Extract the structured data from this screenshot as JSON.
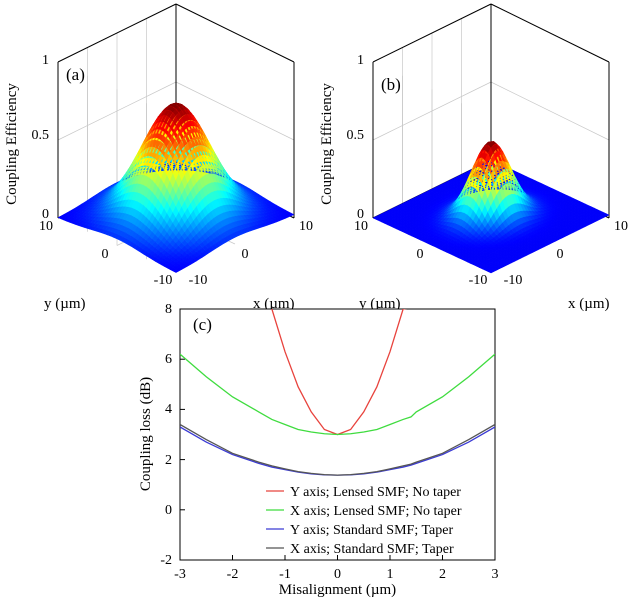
{
  "chart_data": [
    {
      "type": "surface",
      "panel_label": "(a)",
      "zlabel": "Coupling Efficiency",
      "xlabel": "x (µm)",
      "ylabel": "y (µm)",
      "zlim": [
        0,
        1
      ],
      "zticks": [
        "0",
        "0.5",
        "1"
      ],
      "xticks": [
        "-10",
        "0",
        "10"
      ],
      "yticks": [
        "10",
        "0",
        "-10"
      ],
      "peak": 0.72,
      "sigma_um": 4.2,
      "colormap": "jet"
    },
    {
      "type": "surface",
      "panel_label": "(b)",
      "zlabel": "Coupling Efficiency",
      "xlabel": "x (µm)",
      "ylabel": "y (µm)",
      "zlim": [
        0,
        1
      ],
      "zticks": [
        "0",
        "0.5",
        "1"
      ],
      "xticks": [
        "-10",
        "0",
        "10"
      ],
      "yticks": [
        "10",
        "0",
        "-10"
      ],
      "peak": 0.48,
      "sigma_x_um": 2.2,
      "sigma_y_um": 2.6,
      "colormap": "jet"
    },
    {
      "type": "line",
      "panel_label": "(c)",
      "xlabel": "Misalignment (µm)",
      "ylabel": "Coupling loss (dB)",
      "xlim": [
        -3,
        3
      ],
      "ylim": [
        -2,
        8
      ],
      "xticks": [
        "-3",
        "-2",
        "-1",
        "0",
        "1",
        "2",
        "3"
      ],
      "yticks": [
        "-2",
        "0",
        "2",
        "4",
        "6",
        "8"
      ],
      "legend_position": "bottom-right",
      "x": [
        -3,
        -2.5,
        -2,
        -1.5,
        -1.25,
        -1,
        -0.75,
        -0.5,
        -0.25,
        0,
        0.25,
        0.5,
        0.75,
        1,
        1.25,
        1.4,
        1.5,
        2,
        2.5,
        3
      ],
      "series": [
        {
          "name": "Y axis; Lensed SMF; No taper",
          "color": "#e8433d",
          "values": [
            null,
            null,
            null,
            null,
            8.0,
            6.3,
            4.9,
            3.9,
            3.2,
            3.0,
            3.2,
            3.9,
            4.9,
            6.3,
            8.0,
            9.0,
            null,
            null,
            null,
            null
          ]
        },
        {
          "name": "X axis; Lensed SMF; No taper",
          "color": "#3fdc3f",
          "values": [
            6.2,
            5.3,
            4.5,
            3.9,
            3.6,
            3.4,
            3.2,
            3.1,
            3.03,
            3.0,
            3.03,
            3.1,
            3.2,
            3.4,
            3.6,
            3.7,
            3.9,
            4.5,
            5.3,
            6.2
          ]
        },
        {
          "name": "Y axis; Standard SMF; Taper",
          "color": "#3a3ad4",
          "values": [
            3.3,
            2.7,
            2.2,
            1.85,
            1.7,
            1.6,
            1.5,
            1.43,
            1.39,
            1.38,
            1.39,
            1.43,
            1.5,
            1.6,
            1.7,
            1.78,
            1.85,
            2.2,
            2.7,
            3.3
          ]
        },
        {
          "name": "X axis; Standard SMF; Taper",
          "color": "#555555",
          "values": [
            3.4,
            2.8,
            2.25,
            1.9,
            1.75,
            1.63,
            1.52,
            1.45,
            1.4,
            1.38,
            1.4,
            1.45,
            1.52,
            1.63,
            1.75,
            1.82,
            1.9,
            2.25,
            2.8,
            3.4
          ]
        }
      ]
    }
  ]
}
